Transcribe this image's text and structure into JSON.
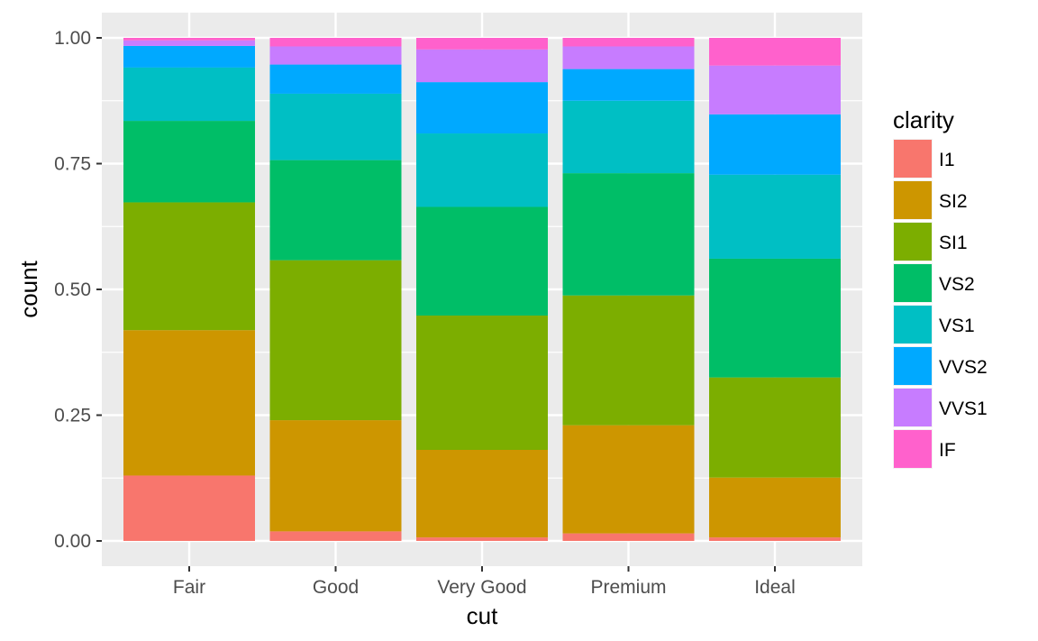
{
  "chart_data": {
    "type": "bar",
    "stacked": true,
    "position": "fill",
    "xlabel": "cut",
    "ylabel": "count",
    "categories": [
      "Fair",
      "Good",
      "Very Good",
      "Premium",
      "Ideal"
    ],
    "ylim": [
      0,
      1
    ],
    "yticks": [
      0,
      0.25,
      0.5,
      0.75,
      1
    ],
    "ytick_labels": [
      "0.00",
      "0.25",
      "0.50",
      "0.75",
      "1.00"
    ],
    "grid": true,
    "legend": {
      "title": "clarity",
      "position": "right"
    },
    "series": [
      {
        "name": "I1",
        "color": "#F8766D",
        "values": [
          0.13,
          0.019,
          0.007,
          0.015,
          0.007
        ]
      },
      {
        "name": "SI2",
        "color": "#CD9600",
        "values": [
          0.289,
          0.221,
          0.174,
          0.215,
          0.119
        ]
      },
      {
        "name": "SI1",
        "color": "#7CAE00",
        "values": [
          0.254,
          0.318,
          0.267,
          0.258,
          0.199
        ]
      },
      {
        "name": "VS2",
        "color": "#00BE67",
        "values": [
          0.162,
          0.199,
          0.216,
          0.243,
          0.236
        ]
      },
      {
        "name": "VS1",
        "color": "#00BFC4",
        "values": [
          0.106,
          0.132,
          0.146,
          0.144,
          0.167
        ]
      },
      {
        "name": "VVS2",
        "color": "#00A9FF",
        "values": [
          0.043,
          0.058,
          0.102,
          0.063,
          0.12
        ]
      },
      {
        "name": "VVS1",
        "color": "#C77CFF",
        "values": [
          0.011,
          0.036,
          0.065,
          0.045,
          0.097
        ]
      },
      {
        "name": "IF",
        "color": "#FF61CC",
        "values": [
          0.005,
          0.017,
          0.023,
          0.017,
          0.055
        ]
      }
    ]
  }
}
